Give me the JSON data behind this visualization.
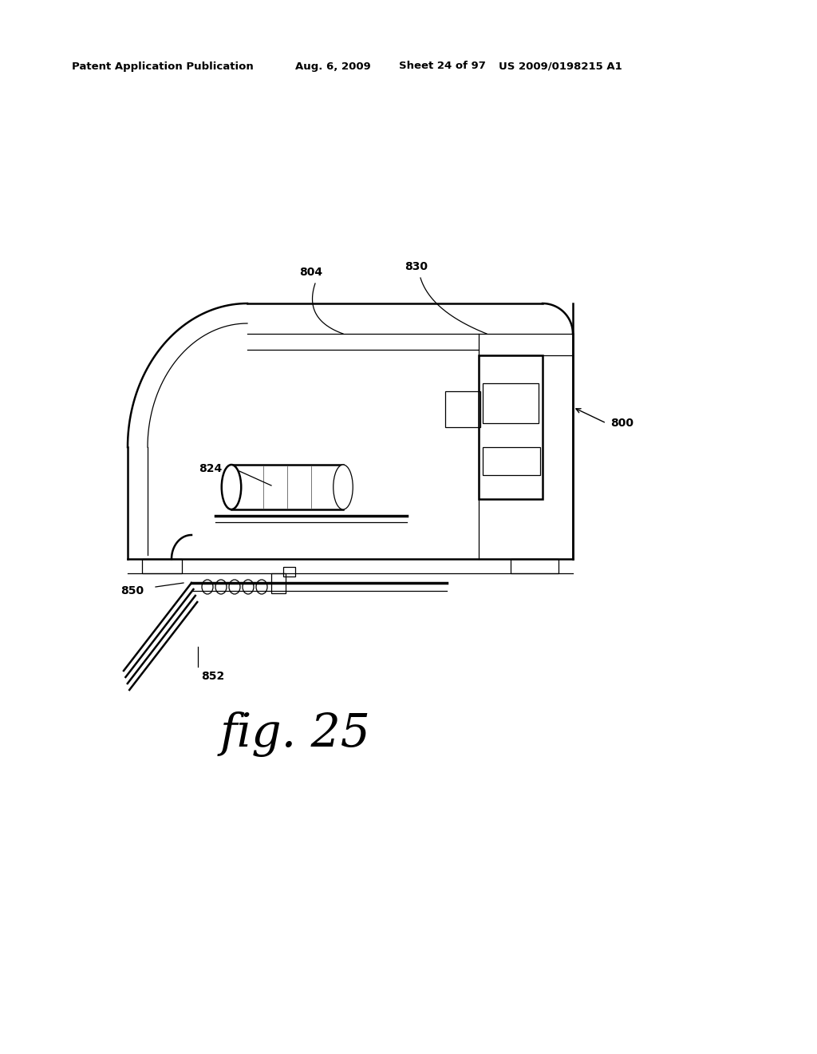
{
  "bg_color": "#ffffff",
  "line_color": "#000000",
  "header_text": "Patent Application Publication",
  "header_date": "Aug. 6, 2009",
  "header_sheet": "Sheet 24 of 97",
  "header_patent": "US 2009/0198215 A1",
  "fig_label": "fig. 25",
  "lw_main": 1.8,
  "lw_thin": 0.9,
  "lw_thick": 2.5
}
